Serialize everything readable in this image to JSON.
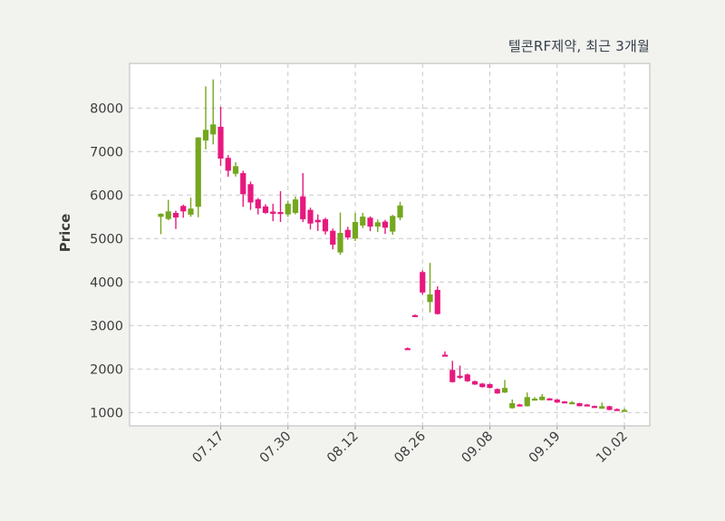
{
  "title": "텔콘RF제약, 최근 3개월",
  "y_axis": {
    "label": "Price",
    "ticks": [
      1000,
      2000,
      3000,
      4000,
      5000,
      6000,
      7000,
      8000
    ]
  },
  "x_axis": {
    "tick_labels": [
      "07.17",
      "07.30",
      "08.12",
      "08.26",
      "09.08",
      "09.19",
      "10.02"
    ],
    "tick_indices": [
      8,
      17,
      26,
      35,
      44,
      53,
      62
    ]
  },
  "colors": {
    "up": "#74a71f",
    "down": "#e7187f",
    "grid": "#c9c9c9",
    "border": "#c3c3c3",
    "axes_bg": "#ffffff",
    "fig_bg": "#f2f2ef",
    "tick_text": "#3d3d3d",
    "title_text": "#36404a"
  },
  "chart_data": {
    "type": "candlestick",
    "title": "텔콘RF제약, 최근 3개월",
    "xlabel": "",
    "ylabel": "Price",
    "ylim": [
      694,
      9026
    ],
    "grid": "dashed both axes",
    "x_tick_labels": [
      "07.17",
      "07.30",
      "08.12",
      "08.26",
      "09.08",
      "09.19",
      "10.02"
    ],
    "x_tick_indices": [
      8,
      17,
      26,
      35,
      44,
      53,
      62
    ],
    "ohlc_order": [
      "open",
      "high",
      "low",
      "close"
    ],
    "candles": [
      [
        5500,
        5580,
        5100,
        5570
      ],
      [
        5450,
        5890,
        5420,
        5625
      ],
      [
        5590,
        5640,
        5220,
        5485
      ],
      [
        5750,
        5780,
        5480,
        5625
      ],
      [
        5550,
        5940,
        5500,
        5690
      ],
      [
        5730,
        7330,
        5490,
        7325
      ],
      [
        7255,
        8500,
        7050,
        7500
      ],
      [
        7395,
        8660,
        7165,
        7625
      ],
      [
        7570,
        8030,
        6670,
        6840
      ],
      [
        6855,
        6920,
        6420,
        6560
      ],
      [
        6490,
        6755,
        6425,
        6665
      ],
      [
        6505,
        6560,
        5730,
        6020
      ],
      [
        6250,
        6310,
        5660,
        5830
      ],
      [
        5900,
        5930,
        5555,
        5695
      ],
      [
        5740,
        5790,
        5570,
        5590
      ],
      [
        5620,
        5800,
        5400,
        5570
      ],
      [
        5610,
        6090,
        5380,
        5580
      ],
      [
        5555,
        5870,
        5500,
        5800
      ],
      [
        5590,
        5970,
        5555,
        5900
      ],
      [
        5970,
        6505,
        5380,
        5445
      ],
      [
        5660,
        5710,
        5210,
        5345
      ],
      [
        5430,
        5555,
        5175,
        5375
      ],
      [
        5445,
        5480,
        5095,
        5165
      ],
      [
        5180,
        5230,
        4750,
        4860
      ],
      [
        4680,
        5600,
        4625,
        5130
      ],
      [
        5200,
        5270,
        4975,
        5025
      ],
      [
        5000,
        5590,
        4945,
        5380
      ],
      [
        5300,
        5590,
        5240,
        5505
      ],
      [
        5480,
        5510,
        5170,
        5275
      ],
      [
        5275,
        5440,
        5150,
        5375
      ],
      [
        5390,
        5430,
        5110,
        5250
      ],
      [
        5160,
        5545,
        5085,
        5520
      ],
      [
        5480,
        5845,
        5420,
        5760
      ],
      [
        2480,
        2495,
        2455,
        2465
      ],
      [
        3240,
        3255,
        3215,
        3230
      ],
      [
        4230,
        4270,
        3715,
        3760
      ],
      [
        3540,
        4440,
        3300,
        3715
      ],
      [
        3820,
        3900,
        3255,
        3265
      ],
      [
        2330,
        2405,
        2305,
        2315
      ],
      [
        1980,
        2190,
        1690,
        1700
      ],
      [
        1845,
        2080,
        1770,
        1835
      ],
      [
        1875,
        1895,
        1705,
        1720
      ],
      [
        1720,
        1735,
        1635,
        1645
      ],
      [
        1665,
        1680,
        1575,
        1585
      ],
      [
        1655,
        1665,
        1555,
        1565
      ],
      [
        1540,
        1555,
        1430,
        1440
      ],
      [
        1460,
        1750,
        1450,
        1565
      ],
      [
        1100,
        1300,
        1090,
        1215
      ],
      [
        1185,
        1200,
        1165,
        1180
      ],
      [
        1145,
        1460,
        1140,
        1355
      ],
      [
        1315,
        1355,
        1300,
        1320
      ],
      [
        1285,
        1425,
        1280,
        1365
      ],
      [
        1325,
        1335,
        1305,
        1315
      ],
      [
        1300,
        1310,
        1220,
        1230
      ],
      [
        1255,
        1265,
        1235,
        1250
      ],
      [
        1225,
        1265,
        1215,
        1235
      ],
      [
        1215,
        1225,
        1140,
        1146
      ],
      [
        1185,
        1195,
        1165,
        1180
      ],
      [
        1150,
        1160,
        1130,
        1145
      ],
      [
        1090,
        1230,
        1085,
        1145
      ],
      [
        1145,
        1155,
        1050,
        1060
      ],
      [
        1080,
        1095,
        1055,
        1075
      ],
      [
        1060,
        1095,
        1025,
        1060
      ]
    ]
  }
}
